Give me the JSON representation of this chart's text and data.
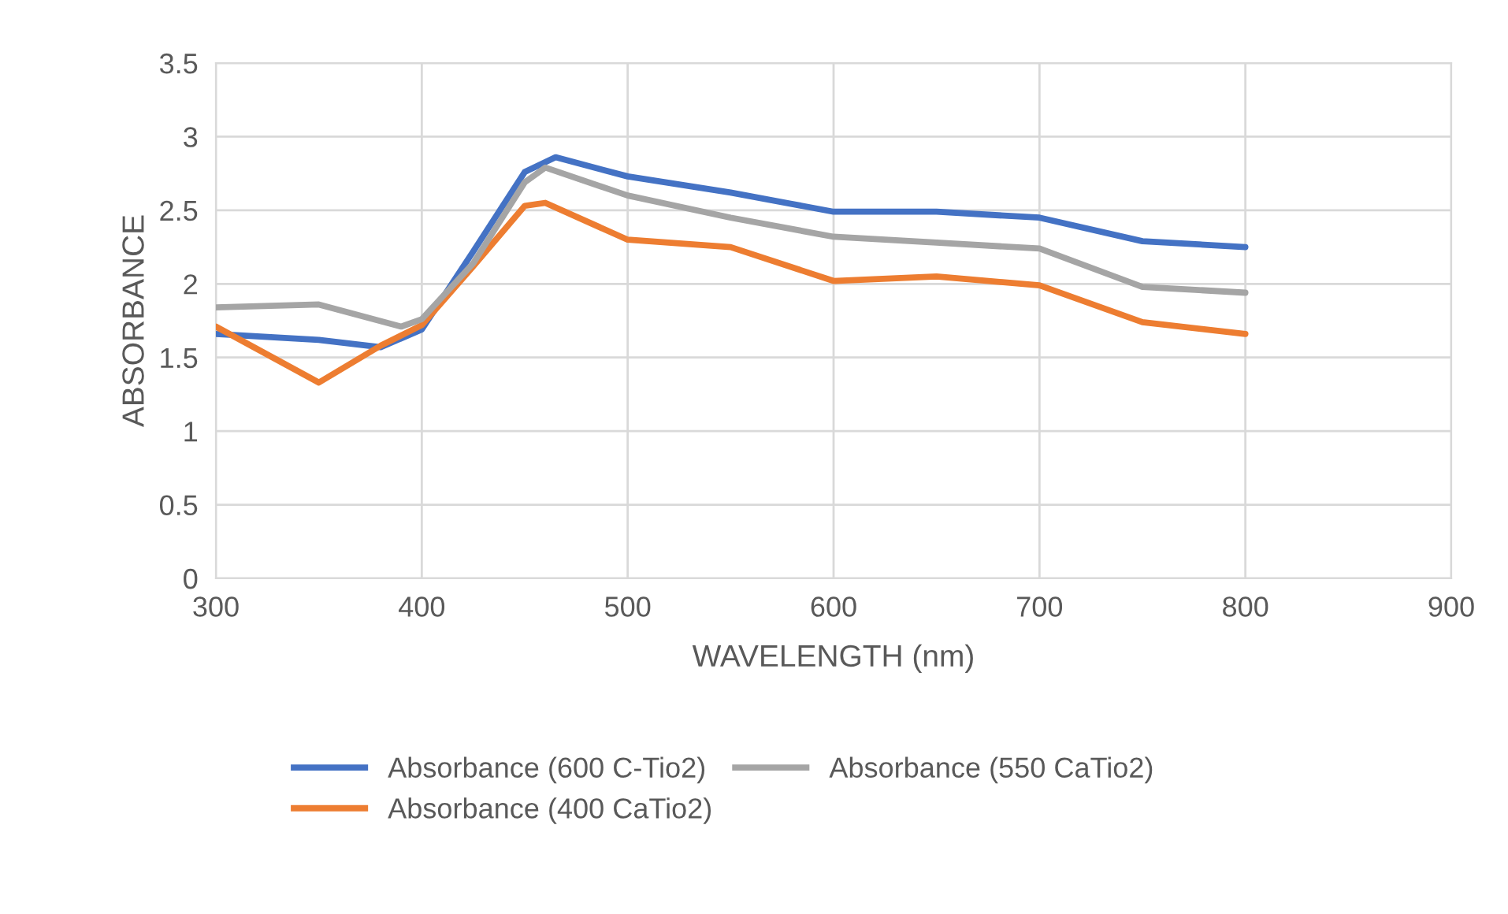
{
  "chart_data": {
    "type": "line",
    "xlabel": "WAVELENGTH (nm)",
    "ylabel": "ABSORBANCE",
    "xlim": [
      300,
      900
    ],
    "xticks": [
      300,
      400,
      500,
      600,
      700,
      800,
      900
    ],
    "ylim": [
      0,
      3.5
    ],
    "yticks": [
      0,
      0.5,
      1,
      1.5,
      2,
      2.5,
      3,
      3.5
    ],
    "grid": true,
    "legend": "bottom",
    "marker": "none",
    "line_style": "solid",
    "series": [
      {
        "name": "Absorbance (600 C-Tio2)",
        "color": "#4472c4",
        "x": [
          300,
          350,
          380,
          400,
          425,
          450,
          465,
          500,
          550,
          600,
          650,
          700,
          750,
          800
        ],
        "values": [
          1.66,
          1.62,
          1.57,
          1.69,
          2.22,
          2.76,
          2.86,
          2.73,
          2.62,
          2.49,
          2.49,
          2.45,
          2.29,
          2.25
        ]
      },
      {
        "name": "Absorbance (400 CaTio2)",
        "color": "#ed7d31",
        "x": [
          300,
          350,
          380,
          400,
          425,
          450,
          460,
          500,
          550,
          600,
          650,
          700,
          750,
          800
        ],
        "values": [
          1.71,
          1.33,
          1.58,
          1.72,
          2.12,
          2.53,
          2.55,
          2.3,
          2.25,
          2.02,
          2.05,
          1.99,
          1.74,
          1.66
        ]
      },
      {
        "name": "Absorbance (550 CaTio2)",
        "color": "#a5a5a5",
        "x": [
          300,
          350,
          390,
          400,
          425,
          450,
          460,
          500,
          550,
          600,
          650,
          700,
          750,
          800
        ],
        "values": [
          1.84,
          1.86,
          1.71,
          1.76,
          2.14,
          2.69,
          2.79,
          2.6,
          2.45,
          2.32,
          2.28,
          2.24,
          1.98,
          1.94
        ]
      }
    ]
  }
}
